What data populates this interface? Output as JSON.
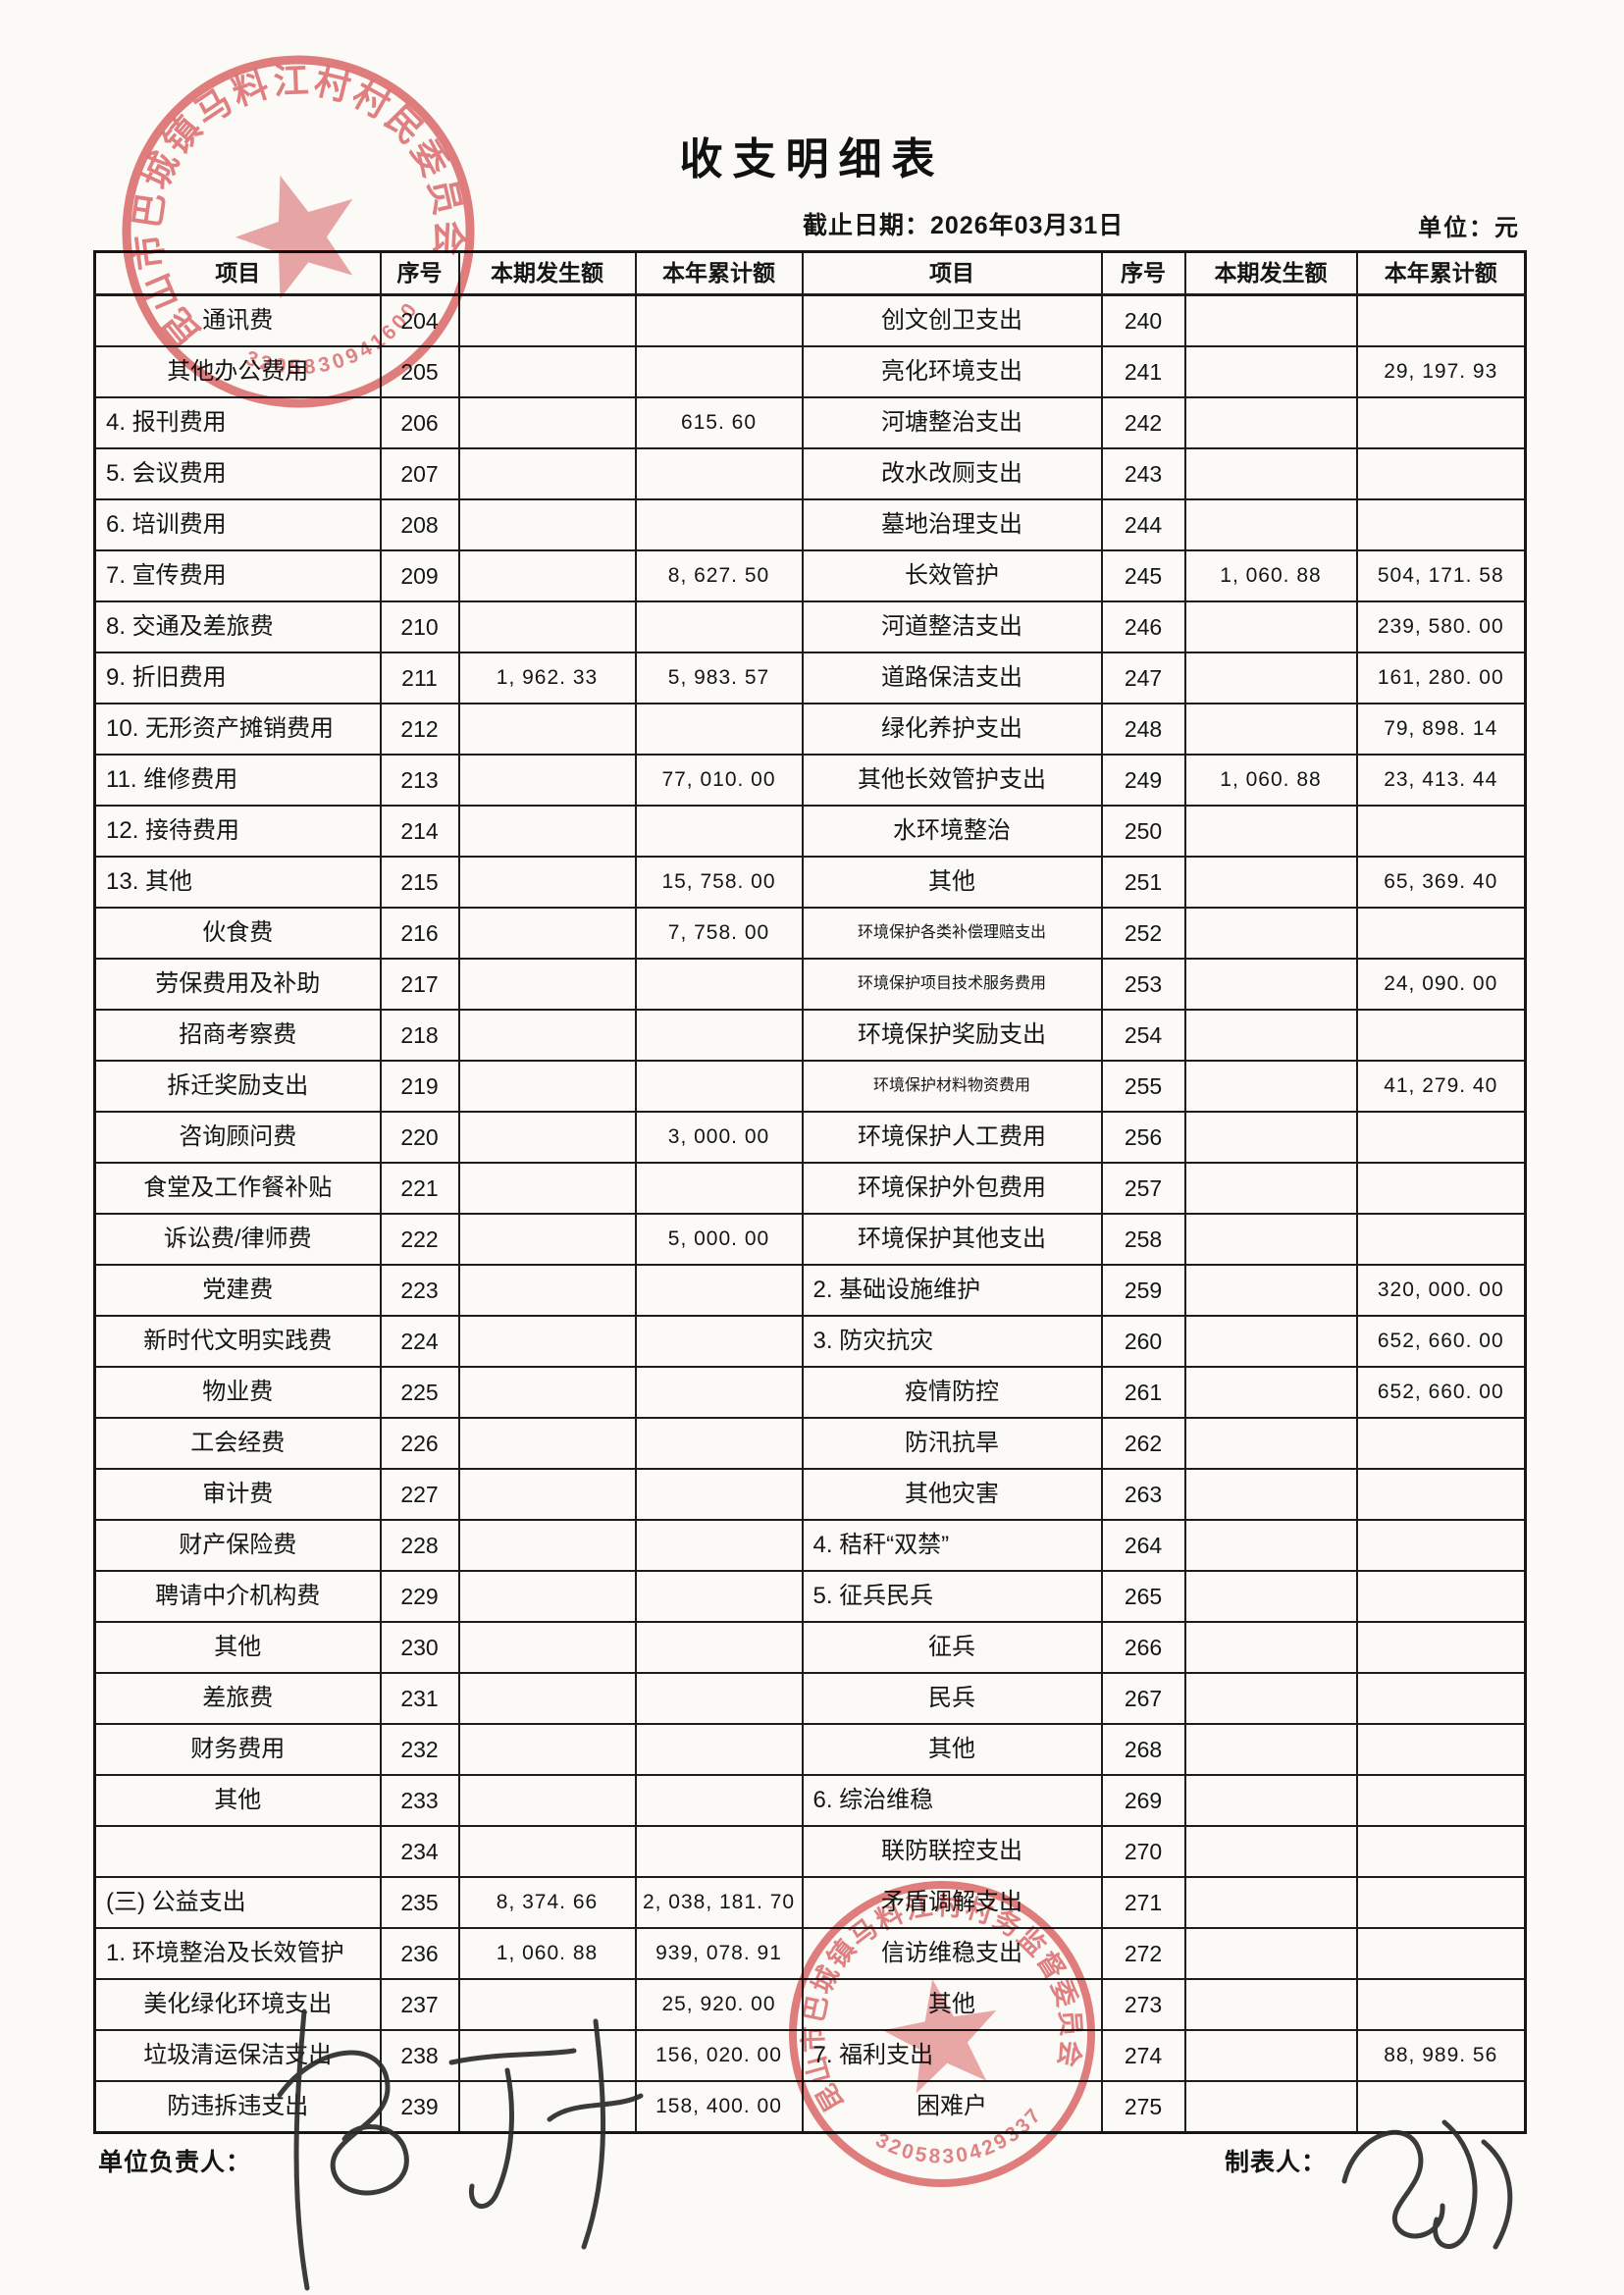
{
  "header": {
    "title": "收支明细表",
    "date_label": "截止日期：2026年03月31日",
    "unit_label": "单位：元"
  },
  "footer": {
    "left_label": "单位负责人：",
    "right_label": "制表人："
  },
  "stamps": {
    "color": "#d9575a",
    "top": {
      "ring_text": "昆山市巴城镇马料江村村民委员会",
      "serial": "3205830941600"
    },
    "bottom": {
      "ring_text": "昆山市巴城镇马料江村村务监督委员会",
      "serial": "3205830429337"
    }
  },
  "table": {
    "headers": [
      "项目",
      "序号",
      "本期发生额",
      "本年累计额"
    ],
    "rows": [
      {
        "li": "通讯费",
        "ls": "s",
        "ln": "204",
        "lc": "",
        "ly": "",
        "ri": "创文创卫支出",
        "rs": "s",
        "rn": "240",
        "rc": "",
        "ry": ""
      },
      {
        "li": "其他办公费用",
        "ls": "s",
        "ln": "205",
        "lc": "",
        "ly": "",
        "ri": "亮化环境支出",
        "rs": "s",
        "rn": "241",
        "rc": "",
        "ry": "29, 197. 93"
      },
      {
        "li": "4. 报刊费用",
        "ls": "m",
        "ln": "206",
        "lc": "",
        "ly": "615. 60",
        "ri": "河塘整治支出",
        "rs": "s",
        "rn": "242",
        "rc": "",
        "ry": ""
      },
      {
        "li": "5. 会议费用",
        "ls": "m",
        "ln": "207",
        "lc": "",
        "ly": "",
        "ri": "改水改厕支出",
        "rs": "s",
        "rn": "243",
        "rc": "",
        "ry": ""
      },
      {
        "li": "6. 培训费用",
        "ls": "m",
        "ln": "208",
        "lc": "",
        "ly": "",
        "ri": "墓地治理支出",
        "rs": "s",
        "rn": "244",
        "rc": "",
        "ry": ""
      },
      {
        "li": "7. 宣传费用",
        "ls": "m",
        "ln": "209",
        "lc": "",
        "ly": "8, 627. 50",
        "ri": "长效管护",
        "rs": "s",
        "rn": "245",
        "rc": "1, 060. 88",
        "ry": "504, 171. 58"
      },
      {
        "li": "8. 交通及差旅费",
        "ls": "m",
        "ln": "210",
        "lc": "",
        "ly": "",
        "ri": "河道整洁支出",
        "rs": "s",
        "rn": "246",
        "rc": "",
        "ry": "239, 580. 00"
      },
      {
        "li": "9. 折旧费用",
        "ls": "m",
        "ln": "211",
        "lc": "1, 962. 33",
        "ly": "5, 983. 57",
        "ri": "道路保洁支出",
        "rs": "s",
        "rn": "247",
        "rc": "",
        "ry": "161, 280. 00"
      },
      {
        "li": "10. 无形资产摊销费用",
        "ls": "m",
        "ln": "212",
        "lc": "",
        "ly": "",
        "ri": "绿化养护支出",
        "rs": "s",
        "rn": "248",
        "rc": "",
        "ry": "79, 898. 14"
      },
      {
        "li": "11. 维修费用",
        "ls": "m",
        "ln": "213",
        "lc": "",
        "ly": "77, 010. 00",
        "ri": "其他长效管护支出",
        "rs": "s",
        "rn": "249",
        "rc": "1, 060. 88",
        "ry": "23, 413. 44"
      },
      {
        "li": "12. 接待费用",
        "ls": "m",
        "ln": "214",
        "lc": "",
        "ly": "",
        "ri": "水环境整治",
        "rs": "s",
        "rn": "250",
        "rc": "",
        "ry": ""
      },
      {
        "li": "13. 其他",
        "ls": "m",
        "ln": "215",
        "lc": "",
        "ly": "15, 758. 00",
        "ri": "其他",
        "rs": "s",
        "rn": "251",
        "rc": "",
        "ry": "65, 369. 40"
      },
      {
        "li": "伙食费",
        "ls": "s",
        "ln": "216",
        "lc": "",
        "ly": "7, 758. 00",
        "ri": "环境保护各类补偿理赔支出",
        "rs": "x",
        "rn": "252",
        "rc": "",
        "ry": ""
      },
      {
        "li": "劳保费用及补助",
        "ls": "s",
        "ln": "217",
        "lc": "",
        "ly": "",
        "ri": "环境保护项目技术服务费用",
        "rs": "x",
        "rn": "253",
        "rc": "",
        "ry": "24, 090. 00"
      },
      {
        "li": "招商考察费",
        "ls": "s",
        "ln": "218",
        "lc": "",
        "ly": "",
        "ri": "环境保护奖励支出",
        "rs": "s",
        "rn": "254",
        "rc": "",
        "ry": ""
      },
      {
        "li": "拆迁奖励支出",
        "ls": "s",
        "ln": "219",
        "lc": "",
        "ly": "",
        "ri": "环境保护材料物资费用",
        "rs": "x",
        "rn": "255",
        "rc": "",
        "ry": "41, 279. 40"
      },
      {
        "li": "咨询顾问费",
        "ls": "s",
        "ln": "220",
        "lc": "",
        "ly": "3, 000. 00",
        "ri": "环境保护人工费用",
        "rs": "s",
        "rn": "256",
        "rc": "",
        "ry": ""
      },
      {
        "li": "食堂及工作餐补贴",
        "ls": "s",
        "ln": "221",
        "lc": "",
        "ly": "",
        "ri": "环境保护外包费用",
        "rs": "s",
        "rn": "257",
        "rc": "",
        "ry": ""
      },
      {
        "li": "诉讼费/律师费",
        "ls": "s",
        "ln": "222",
        "lc": "",
        "ly": "5, 000. 00",
        "ri": "环境保护其他支出",
        "rs": "s",
        "rn": "258",
        "rc": "",
        "ry": ""
      },
      {
        "li": "党建费",
        "ls": "s",
        "ln": "223",
        "lc": "",
        "ly": "",
        "ri": "2. 基础设施维护",
        "rs": "m",
        "rn": "259",
        "rc": "",
        "ry": "320, 000. 00"
      },
      {
        "li": "新时代文明实践费",
        "ls": "s",
        "ln": "224",
        "lc": "",
        "ly": "",
        "ri": "3. 防灾抗灾",
        "rs": "m",
        "rn": "260",
        "rc": "",
        "ry": "652, 660. 00"
      },
      {
        "li": "物业费",
        "ls": "s",
        "ln": "225",
        "lc": "",
        "ly": "",
        "ri": "疫情防控",
        "rs": "s",
        "rn": "261",
        "rc": "",
        "ry": "652, 660. 00"
      },
      {
        "li": "工会经费",
        "ls": "s",
        "ln": "226",
        "lc": "",
        "ly": "",
        "ri": "防汛抗旱",
        "rs": "s",
        "rn": "262",
        "rc": "",
        "ry": ""
      },
      {
        "li": "审计费",
        "ls": "s",
        "ln": "227",
        "lc": "",
        "ly": "",
        "ri": "其他灾害",
        "rs": "s",
        "rn": "263",
        "rc": "",
        "ry": ""
      },
      {
        "li": "财产保险费",
        "ls": "s",
        "ln": "228",
        "lc": "",
        "ly": "",
        "ri": "4. 秸秆“双禁”",
        "rs": "m",
        "rn": "264",
        "rc": "",
        "ry": ""
      },
      {
        "li": "聘请中介机构费",
        "ls": "s",
        "ln": "229",
        "lc": "",
        "ly": "",
        "ri": "5. 征兵民兵",
        "rs": "m",
        "rn": "265",
        "rc": "",
        "ry": ""
      },
      {
        "li": "其他",
        "ls": "s",
        "ln": "230",
        "lc": "",
        "ly": "",
        "ri": "征兵",
        "rs": "s",
        "rn": "266",
        "rc": "",
        "ry": ""
      },
      {
        "li": "差旅费",
        "ls": "s",
        "ln": "231",
        "lc": "",
        "ly": "",
        "ri": "民兵",
        "rs": "s",
        "rn": "267",
        "rc": "",
        "ry": ""
      },
      {
        "li": "财务费用",
        "ls": "s",
        "ln": "232",
        "lc": "",
        "ly": "",
        "ri": "其他",
        "rs": "s",
        "rn": "268",
        "rc": "",
        "ry": ""
      },
      {
        "li": "其他",
        "ls": "s",
        "ln": "233",
        "lc": "",
        "ly": "",
        "ri": "6. 综治维稳",
        "rs": "m",
        "rn": "269",
        "rc": "",
        "ry": ""
      },
      {
        "li": "",
        "ls": "s",
        "ln": "234",
        "lc": "",
        "ly": "",
        "ri": "联防联控支出",
        "rs": "s",
        "rn": "270",
        "rc": "",
        "ry": ""
      },
      {
        "li": "(三) 公益支出",
        "ls": "m",
        "ln": "235",
        "lc": "8, 374. 66",
        "ly": "2, 038, 181. 70",
        "ri": "矛盾调解支出",
        "rs": "s",
        "rn": "271",
        "rc": "",
        "ry": ""
      },
      {
        "li": "1. 环境整治及长效管护",
        "ls": "m",
        "ln": "236",
        "lc": "1, 060. 88",
        "ly": "939, 078. 91",
        "ri": "信访维稳支出",
        "rs": "s",
        "rn": "272",
        "rc": "",
        "ry": ""
      },
      {
        "li": "美化绿化环境支出",
        "ls": "s",
        "ln": "237",
        "lc": "",
        "ly": "25, 920. 00",
        "ri": "其他",
        "rs": "s",
        "rn": "273",
        "rc": "",
        "ry": ""
      },
      {
        "li": "垃圾清运保洁支出",
        "ls": "s",
        "ln": "238",
        "lc": "",
        "ly": "156, 020. 00",
        "ri": "7. 福利支出",
        "rs": "m",
        "rn": "274",
        "rc": "",
        "ry": "88, 989. 56"
      },
      {
        "li": "防违拆违支出",
        "ls": "s",
        "ln": "239",
        "lc": "",
        "ly": "158, 400. 00",
        "ri": "困难户",
        "rs": "s",
        "rn": "275",
        "rc": "",
        "ry": ""
      }
    ]
  }
}
